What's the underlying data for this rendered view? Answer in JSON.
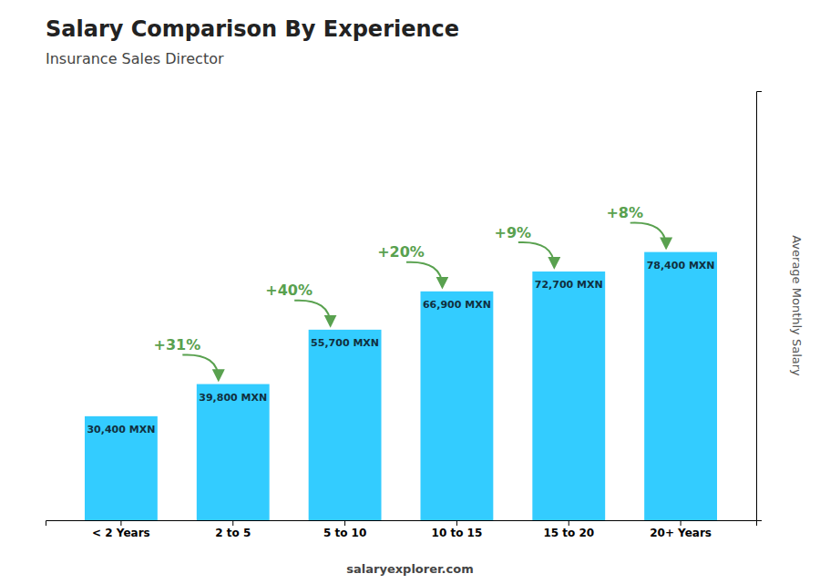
{
  "chart_data": {
    "type": "bar",
    "title": "Salary Comparison By Experience",
    "subtitle": "Insurance Sales Director",
    "ylabel": "Average Monthly Salary",
    "categories": [
      "< 2 Years",
      "2 to 5",
      "5 to 10",
      "10 to 15",
      "15 to 20",
      "20+ Years"
    ],
    "values": [
      30400,
      39800,
      55700,
      66900,
      72700,
      78400
    ],
    "value_labels": [
      "30,400 MXN",
      "39,800 MXN",
      "55,700 MXN",
      "66,900 MXN",
      "72,700 MXN",
      "78,400 MXN"
    ],
    "data_labels": true,
    "color": "#33ccff",
    "ylim": [
      0,
      125440
    ],
    "tick_labels": "x",
    "grid": false,
    "annotations": [
      "+31%",
      "+40%",
      "+20%",
      "+9%",
      "+8%"
    ],
    "footer": "salaryexplorer.com"
  }
}
